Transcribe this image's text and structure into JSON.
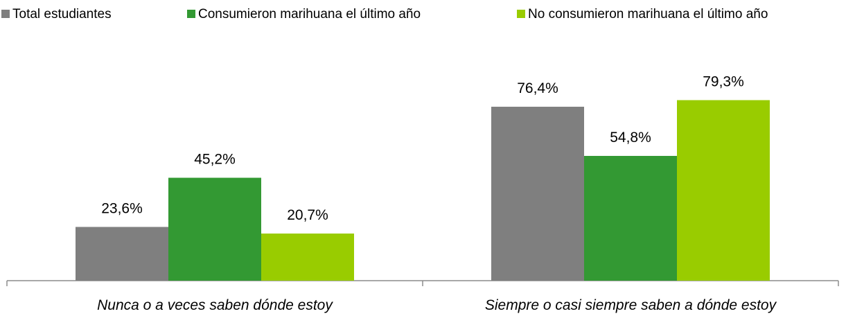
{
  "chart_data": {
    "type": "bar",
    "categories": [
      "Nunca o a veces saben dónde estoy",
      "Siempre o casi siempre saben a dónde estoy"
    ],
    "series": [
      {
        "name": "Total estudiantes",
        "color": "#7f7f7f",
        "values": [
          23.6,
          76.4
        ],
        "value_labels": [
          "23,6%",
          "76,4%"
        ]
      },
      {
        "name": "Consumieron marihuana el último año",
        "color": "#339933",
        "values": [
          45.2,
          54.8
        ],
        "value_labels": [
          "45,2%",
          "54,8%"
        ]
      },
      {
        "name": "No consumieron marihuana el último año",
        "color": "#99cc00",
        "values": [
          20.7,
          79.3
        ],
        "value_labels": [
          "20,7%",
          "79,3%"
        ]
      }
    ],
    "legend": "top"
  }
}
